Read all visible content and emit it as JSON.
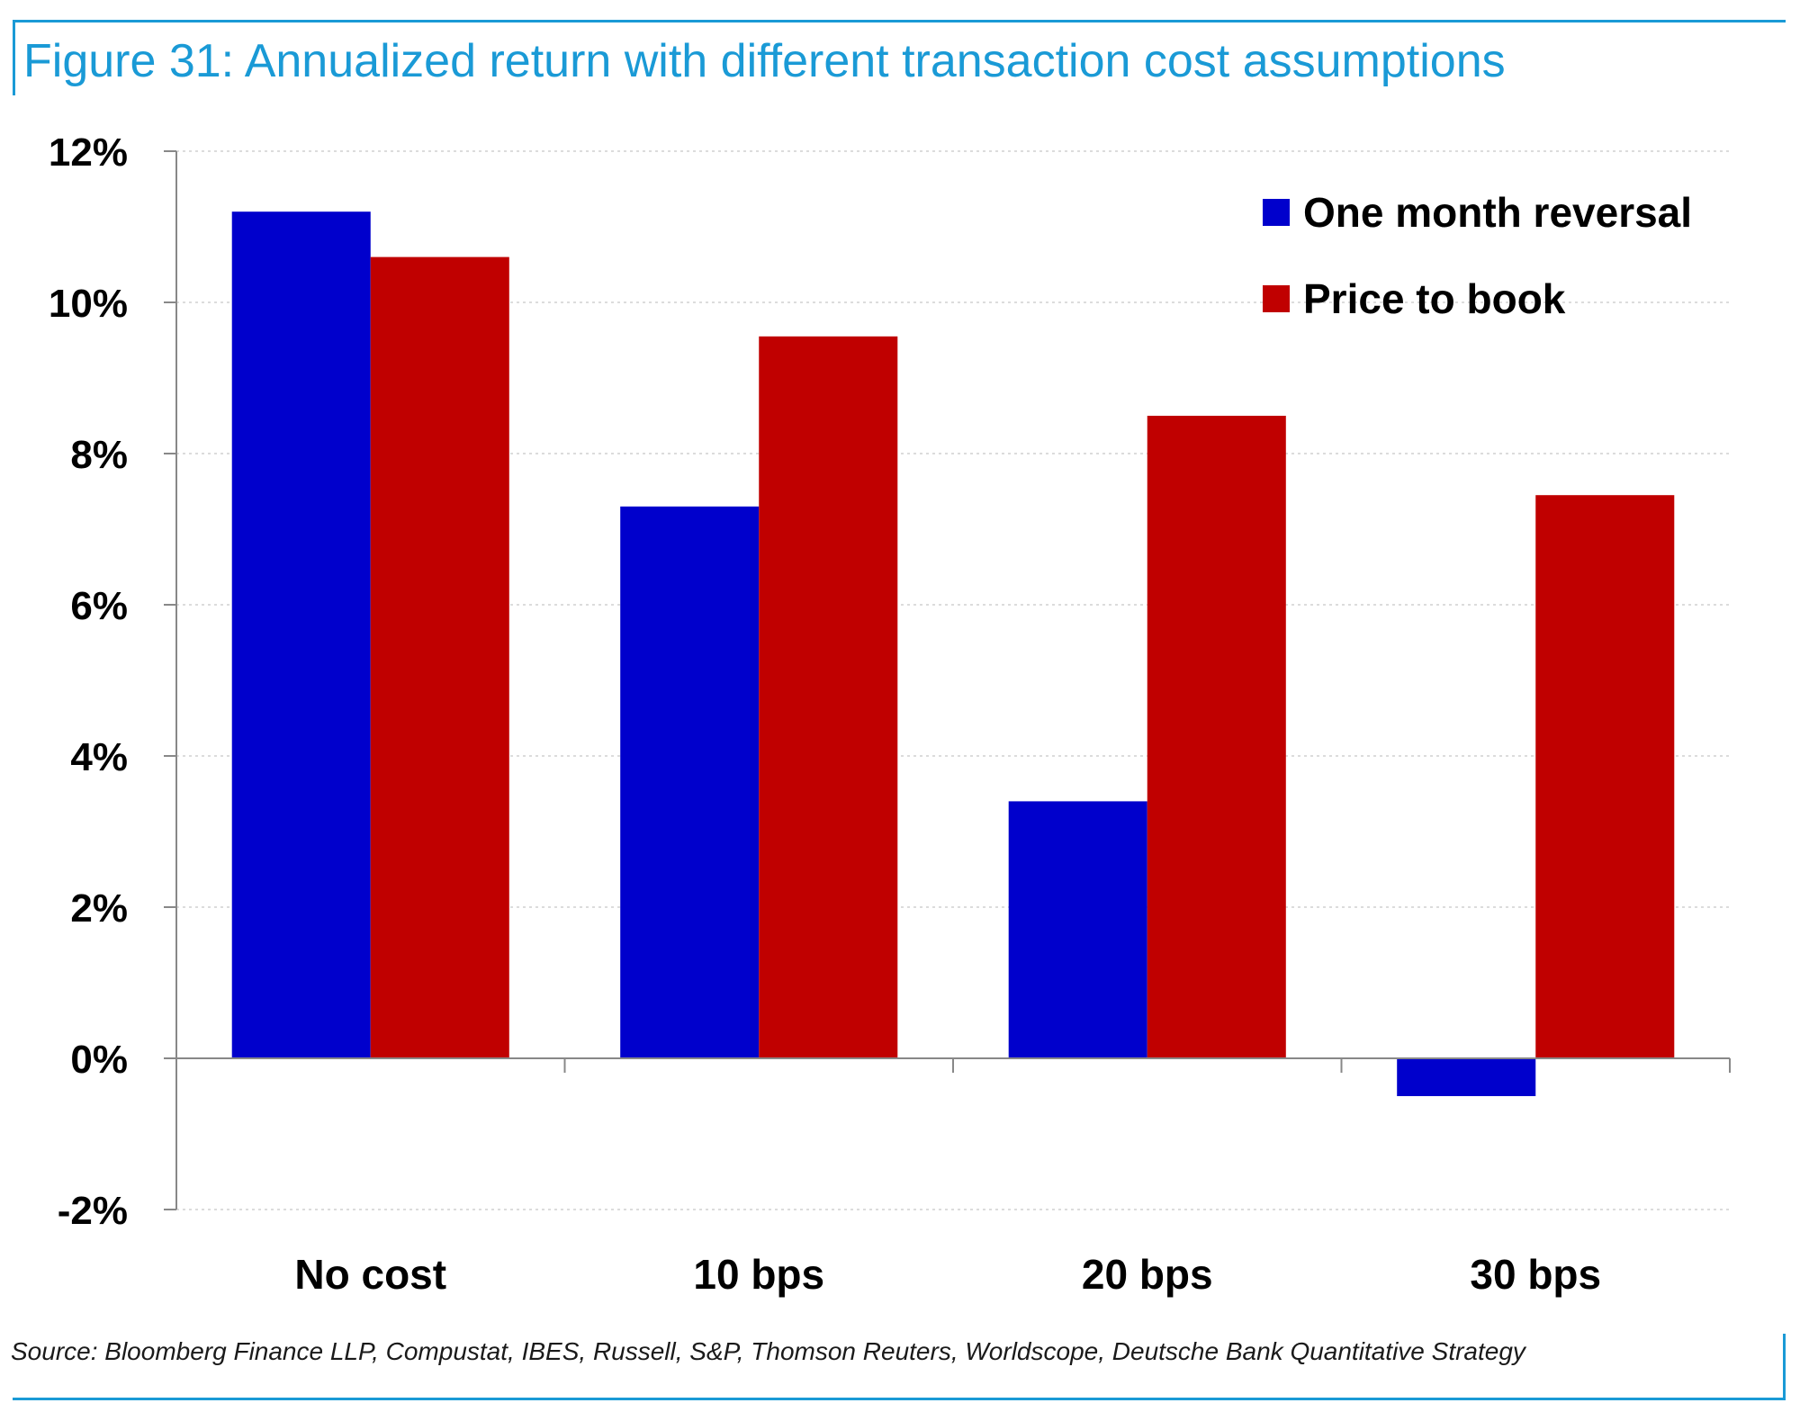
{
  "title": "Figure 31: Annualized return with different transaction cost assumptions",
  "source": "Source: Bloomberg Finance LLP, Compustat, IBES, Russell, S&P, Thomson Reuters, Worldscope, Deutsche Bank Quantitative Strategy",
  "colors": {
    "accent": "#1a9ad6",
    "series_one_month_reversal": "#0000cc",
    "series_price_to_book": "#c00000",
    "axis": "#888888",
    "grid": "#d0d0d0"
  },
  "chart_data": {
    "type": "bar",
    "title": "Figure 31: Annualized return with different transaction cost assumptions",
    "xlabel": "",
    "ylabel": "",
    "categories": [
      "No cost",
      "10 bps",
      "20 bps",
      "30 bps"
    ],
    "series": [
      {
        "name": "One month reversal",
        "color": "#0000cc",
        "values": [
          11.2,
          7.3,
          3.4,
          -0.5
        ]
      },
      {
        "name": "Price to book",
        "color": "#c00000",
        "values": [
          10.6,
          9.55,
          8.5,
          7.45
        ]
      }
    ],
    "ylim": [
      -2,
      12
    ],
    "yticks": [
      -2,
      0,
      2,
      4,
      6,
      8,
      10,
      12
    ],
    "ytick_labels": [
      "-2%",
      "0%",
      "2%",
      "4%",
      "6%",
      "8%",
      "10%",
      "12%"
    ],
    "y_unit": "%",
    "grid": true,
    "legend_position": "top-right"
  }
}
